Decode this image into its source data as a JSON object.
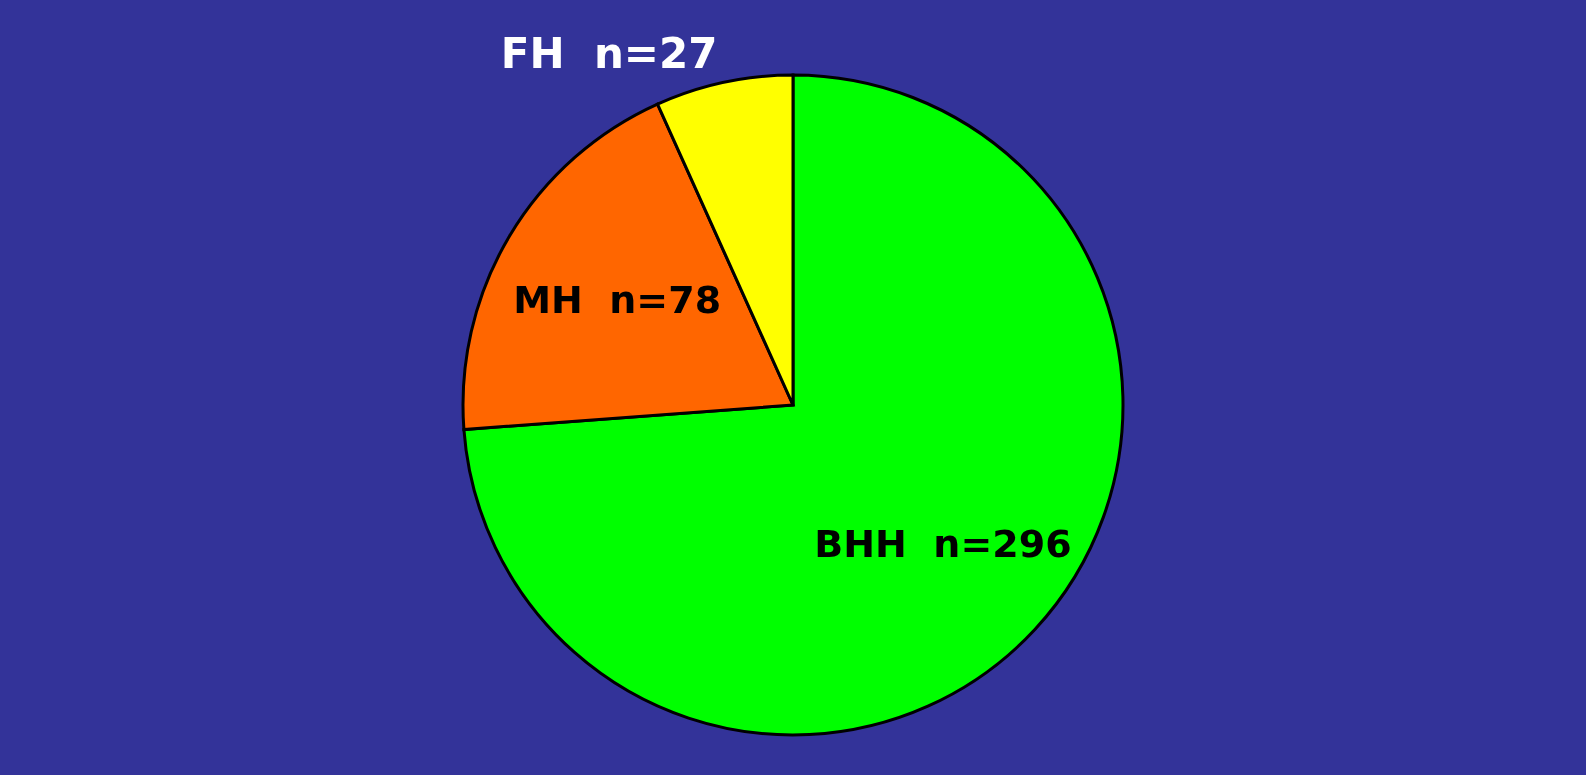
{
  "chart_data": {
    "type": "pie",
    "categories": [
      "BHH",
      "MH",
      "FH"
    ],
    "values": [
      296,
      78,
      27
    ],
    "value_labels": [
      "n=296",
      "n=78",
      "n=27"
    ],
    "colors": [
      "#00ff00",
      "#ff6600",
      "#ffff00"
    ]
  }
}
